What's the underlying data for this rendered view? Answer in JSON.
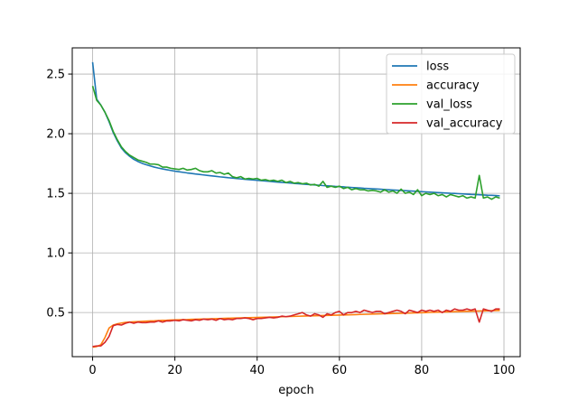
{
  "chart_data": {
    "type": "line",
    "xlabel": "epoch",
    "ylabel": "",
    "xlim": [
      -4.95,
      103.95
    ],
    "ylim": [
      0.13,
      2.72
    ],
    "xticks": [
      0,
      20,
      40,
      60,
      80,
      100
    ],
    "yticks": [
      0.5,
      1.0,
      1.5,
      2.0,
      2.5
    ],
    "xtick_labels": [
      "0",
      "20",
      "40",
      "60",
      "80",
      "100"
    ],
    "ytick_labels": [
      "0.5",
      "1.0",
      "1.5",
      "2.0",
      "2.5"
    ],
    "grid": true,
    "legend_position": "upper right",
    "x": [
      0,
      1,
      2,
      3,
      4,
      5,
      6,
      7,
      8,
      9,
      10,
      11,
      12,
      13,
      14,
      15,
      16,
      17,
      18,
      19,
      20,
      21,
      22,
      23,
      24,
      25,
      26,
      27,
      28,
      29,
      30,
      31,
      32,
      33,
      34,
      35,
      36,
      37,
      38,
      39,
      40,
      41,
      42,
      43,
      44,
      45,
      46,
      47,
      48,
      49,
      50,
      51,
      52,
      53,
      54,
      55,
      56,
      57,
      58,
      59,
      60,
      61,
      62,
      63,
      64,
      65,
      66,
      67,
      68,
      69,
      70,
      71,
      72,
      73,
      74,
      75,
      76,
      77,
      78,
      79,
      80,
      81,
      82,
      83,
      84,
      85,
      86,
      87,
      88,
      89,
      90,
      91,
      92,
      93,
      94,
      95,
      96,
      97,
      98,
      99
    ],
    "series": [
      {
        "name": "loss",
        "color": "#1f77b4",
        "values": [
          2.6,
          2.29,
          2.24,
          2.18,
          2.1,
          2.01,
          1.94,
          1.88,
          1.84,
          1.81,
          1.785,
          1.767,
          1.752,
          1.74,
          1.73,
          1.72,
          1.712,
          1.705,
          1.698,
          1.692,
          1.686,
          1.681,
          1.676,
          1.671,
          1.667,
          1.662,
          1.658,
          1.654,
          1.65,
          1.646,
          1.642,
          1.638,
          1.635,
          1.631,
          1.628,
          1.624,
          1.621,
          1.618,
          1.615,
          1.612,
          1.609,
          1.606,
          1.603,
          1.6,
          1.597,
          1.594,
          1.591,
          1.589,
          1.586,
          1.583,
          1.581,
          1.578,
          1.575,
          1.573,
          1.57,
          1.568,
          1.565,
          1.563,
          1.561,
          1.558,
          1.556,
          1.554,
          1.551,
          1.549,
          1.547,
          1.545,
          1.542,
          1.54,
          1.538,
          1.536,
          1.534,
          1.532,
          1.53,
          1.528,
          1.526,
          1.524,
          1.522,
          1.52,
          1.518,
          1.516,
          1.514,
          1.512,
          1.51,
          1.508,
          1.506,
          1.504,
          1.502,
          1.5,
          1.499,
          1.497,
          1.495,
          1.493,
          1.491,
          1.49,
          1.488,
          1.486,
          1.484,
          1.483,
          1.481,
          1.479
        ]
      },
      {
        "name": "accuracy",
        "color": "#ff7f0e",
        "values": [
          0.21,
          0.215,
          0.23,
          0.29,
          0.37,
          0.395,
          0.405,
          0.412,
          0.417,
          0.42,
          0.422,
          0.424,
          0.426,
          0.428,
          0.43,
          0.431,
          0.433,
          0.434,
          0.435,
          0.437,
          0.438,
          0.439,
          0.44,
          0.441,
          0.443,
          0.444,
          0.445,
          0.446,
          0.447,
          0.448,
          0.449,
          0.45,
          0.451,
          0.452,
          0.453,
          0.454,
          0.455,
          0.456,
          0.457,
          0.458,
          0.459,
          0.46,
          0.461,
          0.462,
          0.463,
          0.464,
          0.465,
          0.466,
          0.467,
          0.468,
          0.469,
          0.47,
          0.471,
          0.472,
          0.473,
          0.474,
          0.475,
          0.476,
          0.477,
          0.478,
          0.479,
          0.48,
          0.481,
          0.482,
          0.483,
          0.484,
          0.485,
          0.486,
          0.487,
          0.488,
          0.489,
          0.49,
          0.491,
          0.492,
          0.493,
          0.494,
          0.495,
          0.496,
          0.497,
          0.498,
          0.499,
          0.5,
          0.501,
          0.502,
          0.503,
          0.504,
          0.505,
          0.506,
          0.507,
          0.508,
          0.509,
          0.51,
          0.511,
          0.512,
          0.513,
          0.514,
          0.515,
          0.516,
          0.517,
          0.518
        ]
      },
      {
        "name": "val_loss",
        "color": "#2ca02c",
        "values": [
          2.4,
          2.28,
          2.24,
          2.18,
          2.11,
          2.02,
          1.95,
          1.89,
          1.85,
          1.82,
          1.8,
          1.78,
          1.77,
          1.76,
          1.745,
          1.745,
          1.74,
          1.72,
          1.72,
          1.71,
          1.705,
          1.7,
          1.71,
          1.695,
          1.7,
          1.71,
          1.69,
          1.68,
          1.68,
          1.69,
          1.67,
          1.675,
          1.66,
          1.67,
          1.64,
          1.63,
          1.64,
          1.62,
          1.625,
          1.62,
          1.625,
          1.61,
          1.615,
          1.605,
          1.61,
          1.6,
          1.61,
          1.59,
          1.6,
          1.585,
          1.59,
          1.58,
          1.585,
          1.57,
          1.575,
          1.56,
          1.6,
          1.55,
          1.56,
          1.55,
          1.56,
          1.54,
          1.55,
          1.53,
          1.54,
          1.53,
          1.53,
          1.52,
          1.525,
          1.52,
          1.51,
          1.53,
          1.51,
          1.52,
          1.5,
          1.535,
          1.5,
          1.51,
          1.49,
          1.53,
          1.48,
          1.5,
          1.49,
          1.5,
          1.48,
          1.49,
          1.47,
          1.49,
          1.48,
          1.47,
          1.48,
          1.46,
          1.47,
          1.46,
          1.65,
          1.46,
          1.47,
          1.45,
          1.47,
          1.46
        ]
      },
      {
        "name": "val_accuracy",
        "color": "#d62728",
        "values": [
          0.215,
          0.22,
          0.22,
          0.25,
          0.3,
          0.39,
          0.4,
          0.395,
          0.41,
          0.42,
          0.41,
          0.42,
          0.415,
          0.415,
          0.42,
          0.42,
          0.43,
          0.42,
          0.43,
          0.43,
          0.435,
          0.43,
          0.44,
          0.435,
          0.43,
          0.44,
          0.435,
          0.445,
          0.44,
          0.445,
          0.435,
          0.45,
          0.44,
          0.445,
          0.44,
          0.45,
          0.45,
          0.455,
          0.45,
          0.44,
          0.45,
          0.45,
          0.455,
          0.46,
          0.455,
          0.46,
          0.47,
          0.465,
          0.47,
          0.48,
          0.49,
          0.5,
          0.48,
          0.47,
          0.49,
          0.48,
          0.46,
          0.49,
          0.48,
          0.5,
          0.51,
          0.48,
          0.5,
          0.5,
          0.51,
          0.5,
          0.52,
          0.51,
          0.5,
          0.51,
          0.51,
          0.49,
          0.5,
          0.51,
          0.52,
          0.51,
          0.49,
          0.52,
          0.51,
          0.5,
          0.52,
          0.51,
          0.52,
          0.51,
          0.52,
          0.5,
          0.52,
          0.51,
          0.53,
          0.52,
          0.52,
          0.53,
          0.52,
          0.53,
          0.42,
          0.53,
          0.52,
          0.51,
          0.53,
          0.53
        ]
      }
    ]
  }
}
